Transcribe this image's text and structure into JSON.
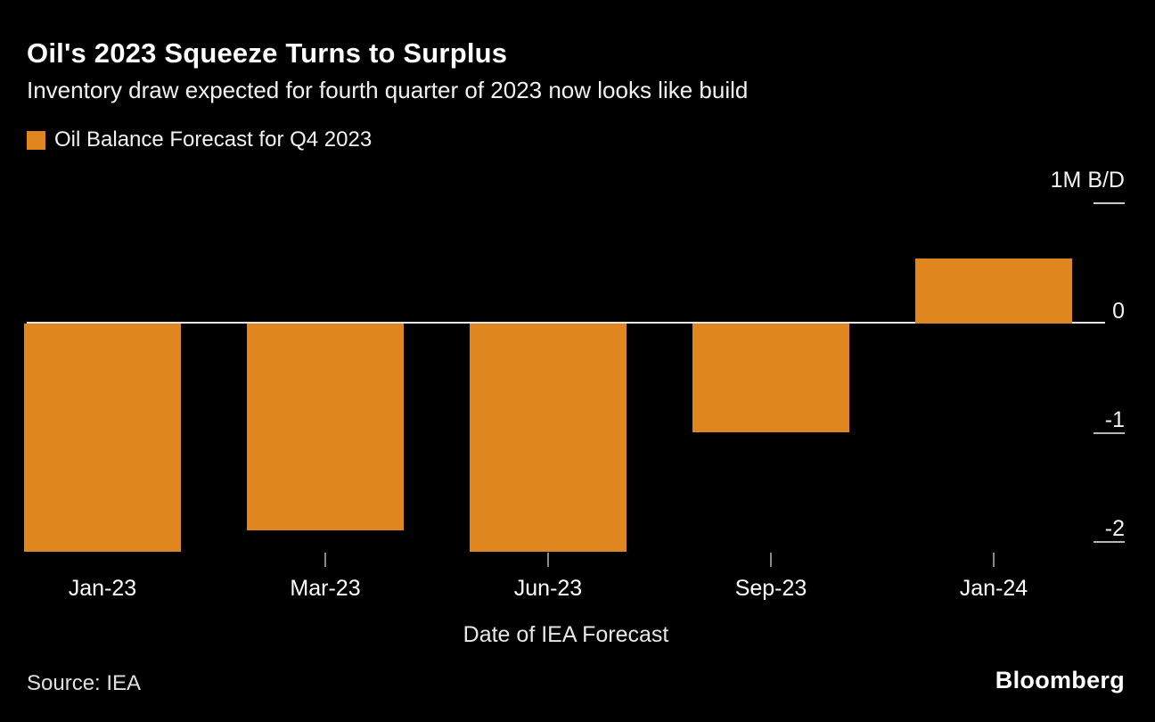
{
  "header": {
    "title": "Oil's 2023 Squeeze Turns to Surplus",
    "subtitle": "Inventory draw expected for fourth quarter of 2023 now looks like build"
  },
  "legend": {
    "label": "Oil Balance Forecast for Q4 2023",
    "color": "#E0861F"
  },
  "chart_data": {
    "type": "bar",
    "title": "Oil's 2023 Squeeze Turns to Surplus",
    "subtitle": "Inventory draw expected for fourth quarter of 2023 now looks like build",
    "series_name": "Oil Balance Forecast for Q4 2023",
    "categories": [
      "Jan-23",
      "Mar-23",
      "Jun-23",
      "Sep-23",
      "Jan-24"
    ],
    "values": [
      -2.1,
      -1.9,
      -2.1,
      -1.0,
      0.6
    ],
    "unit_label": "1M B/D",
    "y_ticks": [
      0,
      -1,
      -2
    ],
    "ylim": [
      -2.4,
      1.1
    ],
    "xlabel": "Date of IEA Forecast",
    "bar_color": "#E0861F",
    "grid": false,
    "legend_position": "top-left",
    "background_color": "#000000"
  },
  "footer": {
    "source": "Source: IEA",
    "brand": "Bloomberg"
  }
}
